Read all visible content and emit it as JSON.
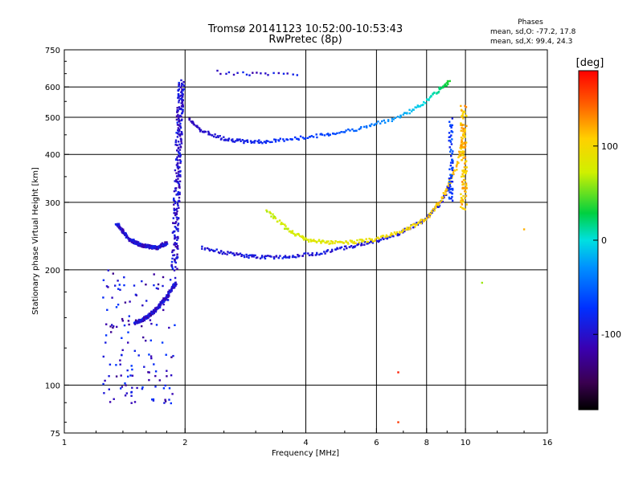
{
  "header": {
    "title_line1": "Tromsø 20141123 10:52:00-10:53:43",
    "title_line2": "RwPretec (8p)"
  },
  "stats": {
    "heading": "Phases",
    "line_o": "mean, sd,O: -77.2, 17.8",
    "line_x": "mean, sd,X:  99.4, 24.3"
  },
  "colorbar": {
    "unit": "[deg]",
    "ticks": [
      "100",
      "0",
      "-100"
    ],
    "tick_values": [
      100,
      0,
      -100
    ],
    "range": [
      -180,
      180
    ]
  },
  "chart_data": {
    "type": "scatter",
    "title": "Tromsø 20141123 10:52:00-10:53:43",
    "subtitle": "RwPretec (8p)",
    "xlabel": "Frequency [MHz]",
    "ylabel": "Stationary phase Virtual Height [km]",
    "xscale": "log",
    "yscale": "log",
    "xlim": [
      1,
      16
    ],
    "ylim": [
      75,
      750
    ],
    "xticks": [
      1,
      2,
      4,
      6,
      8,
      10,
      16
    ],
    "xtick_labels": [
      "1",
      "2",
      "4",
      "6",
      "8",
      "10",
      "16"
    ],
    "yticks": [
      75,
      100,
      200,
      300,
      400,
      500,
      600,
      750
    ],
    "ytick_labels": [
      "75",
      "100",
      "200",
      "300",
      "400",
      "500",
      "600",
      "750"
    ],
    "grid": true,
    "color_by": "phase [deg]",
    "traces": [
      {
        "x": [
          2.05,
          2.2,
          2.5,
          2.8,
          3.2,
          3.8,
          4.6,
          5.6,
          6.8,
          7.8,
          8.6,
          9.1
        ],
        "y": [
          495,
          460,
          440,
          432,
          432,
          440,
          452,
          470,
          500,
          540,
          590,
          620
        ],
        "phase": -100
      },
      {
        "x": [
          2.2,
          2.6,
          3.0,
          3.5,
          4.2,
          5.0,
          5.8,
          6.8,
          7.8,
          8.6,
          9.1
        ],
        "y": [
          228,
          220,
          216,
          216,
          220,
          228,
          236,
          248,
          268,
          295,
          330
        ],
        "phase": -100
      },
      {
        "x": [
          3.2,
          3.6,
          4.0,
          4.5,
          5.2,
          6.0,
          7.0,
          8.0,
          8.8,
          9.5,
          10.0
        ],
        "y": [
          285,
          255,
          240,
          236,
          236,
          240,
          252,
          272,
          310,
          370,
          470
        ],
        "phase": 100
      },
      {
        "x": [
          1.35,
          1.45,
          1.55,
          1.7,
          1.8
        ],
        "y": [
          265,
          240,
          232,
          228,
          235
        ],
        "phase": -100
      },
      {
        "x": [
          1.88,
          1.9,
          1.92,
          1.94,
          1.96
        ],
        "y": [
          200,
          280,
          380,
          500,
          620
        ],
        "phase": -100
      },
      {
        "x": [
          1.5,
          1.6,
          1.7,
          1.8,
          1.9
        ],
        "y": [
          145,
          150,
          158,
          170,
          185
        ],
        "phase": -100
      },
      {
        "x": [
          2.4,
          2.8,
          3.2,
          3.8
        ],
        "y": [
          655,
          650,
          648,
          648
        ],
        "phase": -100
      }
    ],
    "points_approx": [
      {
        "x": 6.8,
        "y": 80,
        "phase": 160
      },
      {
        "x": 6.8,
        "y": 108,
        "phase": 170
      },
      {
        "x": 14,
        "y": 255,
        "phase": 120
      },
      {
        "x": 11,
        "y": 185,
        "phase": 60
      }
    ]
  }
}
